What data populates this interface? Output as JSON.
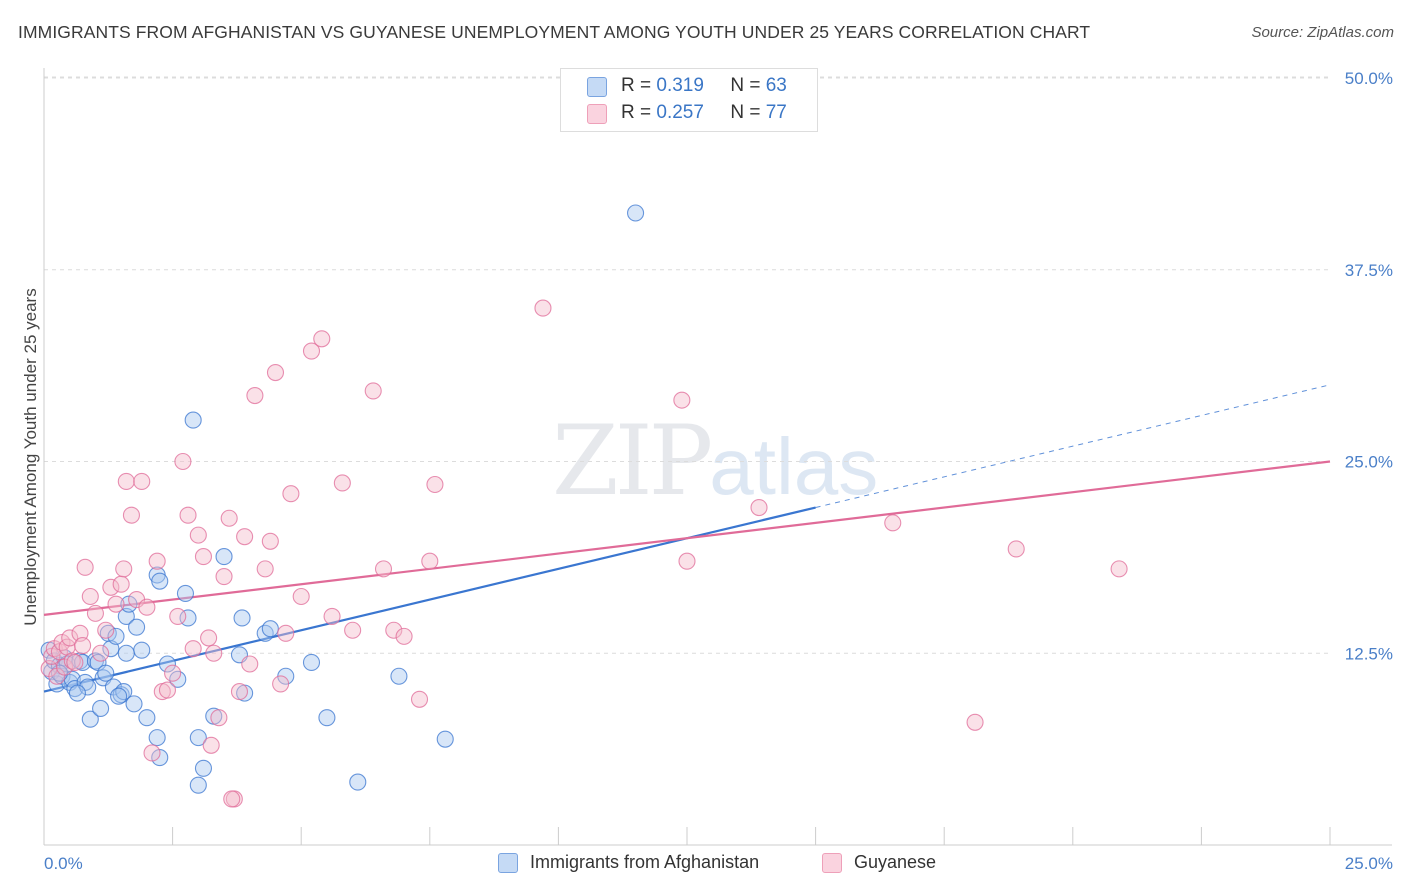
{
  "header": {
    "title": "IMMIGRANTS FROM AFGHANISTAN VS GUYANESE UNEMPLOYMENT AMONG YOUTH UNDER 25 YEARS CORRELATION CHART",
    "source": "Source: ZipAtlas.com"
  },
  "watermark": {
    "zip": "ZIP",
    "atlas": "atlas"
  },
  "legend": {
    "rows": [
      {
        "r_label": "R =",
        "r_value": "0.319",
        "n_label": "N =",
        "n_value": "63",
        "color": "#a9c8f0"
      },
      {
        "r_label": "R =",
        "r_value": "0.257",
        "n_label": "N =",
        "n_value": "77",
        "color": "#f5bccd"
      }
    ]
  },
  "bottom_legend": {
    "series1": "Immigrants from Afghanistan",
    "series2": "Guyanese"
  },
  "chart_data": {
    "type": "scatter",
    "title": "IMMIGRANTS FROM AFGHANISTAN VS GUYANESE UNEMPLOYMENT AMONG YOUTH UNDER 25 YEARS CORRELATION CHART",
    "ylabel": "Unemployment Among Youth under 25 years",
    "xlabel": "",
    "xlim": [
      0,
      25
    ],
    "ylim": [
      0,
      50
    ],
    "x_tick_labels": [
      "0.0%",
      "25.0%"
    ],
    "y_ticks": [
      12.5,
      25.0,
      37.5,
      50.0
    ],
    "y_tick_labels": [
      "12.5%",
      "25.0%",
      "37.5%",
      "50.0%"
    ],
    "grid": true,
    "legend_position": "top-center",
    "series": [
      {
        "name": "Immigrants from Afghanistan",
        "color": "#3a76d0",
        "fill": "#a9c8f0",
        "R": 0.319,
        "N": 63,
        "trend": {
          "x0": 0,
          "y0": 10.0,
          "x1": 15.0,
          "y1": 22.0,
          "x_dash_end": 25.0,
          "y_dash_end": 30.0
        },
        "points": [
          [
            0.1,
            12.7
          ],
          [
            0.15,
            11.3
          ],
          [
            0.2,
            12.0
          ],
          [
            0.25,
            10.5
          ],
          [
            0.3,
            11.7
          ],
          [
            0.35,
            11.0
          ],
          [
            0.4,
            12.2
          ],
          [
            0.45,
            11.8
          ],
          [
            0.5,
            10.6
          ],
          [
            0.55,
            10.8
          ],
          [
            0.6,
            10.2
          ],
          [
            0.7,
            12.0
          ],
          [
            0.75,
            11.9
          ],
          [
            0.8,
            10.6
          ],
          [
            0.85,
            10.3
          ],
          [
            0.9,
            8.2
          ],
          [
            1.0,
            12.0
          ],
          [
            1.05,
            11.9
          ],
          [
            1.1,
            8.9
          ],
          [
            1.15,
            10.9
          ],
          [
            1.2,
            11.2
          ],
          [
            1.25,
            13.8
          ],
          [
            1.3,
            12.8
          ],
          [
            1.35,
            10.3
          ],
          [
            1.4,
            13.6
          ],
          [
            1.5,
            9.8
          ],
          [
            1.55,
            10.0
          ],
          [
            1.6,
            14.9
          ],
          [
            1.65,
            15.7
          ],
          [
            1.75,
            9.2
          ],
          [
            1.8,
            14.2
          ],
          [
            1.9,
            12.7
          ],
          [
            2.0,
            8.3
          ],
          [
            2.2,
            7.0
          ],
          [
            2.4,
            11.8
          ],
          [
            2.6,
            10.8
          ],
          [
            2.8,
            14.8
          ],
          [
            2.9,
            27.7
          ],
          [
            3.0,
            7.0
          ],
          [
            3.1,
            5.0
          ],
          [
            3.3,
            8.4
          ],
          [
            3.5,
            18.8
          ],
          [
            3.8,
            12.4
          ],
          [
            3.9,
            9.9
          ],
          [
            4.3,
            13.8
          ],
          [
            4.7,
            11.0
          ],
          [
            5.2,
            11.9
          ],
          [
            5.5,
            8.3
          ],
          [
            6.1,
            4.1
          ],
          [
            6.9,
            11.0
          ],
          [
            7.8,
            6.9
          ],
          [
            11.5,
            41.2
          ],
          [
            2.25,
            5.7
          ],
          [
            3.85,
            14.8
          ],
          [
            1.45,
            9.7
          ],
          [
            3.0,
            3.9
          ],
          [
            2.75,
            16.4
          ],
          [
            4.4,
            14.1
          ],
          [
            0.65,
            9.9
          ],
          [
            2.2,
            17.6
          ],
          [
            0.3,
            11.2
          ],
          [
            2.25,
            17.2
          ],
          [
            1.6,
            12.5
          ]
        ]
      },
      {
        "name": "Guyanese",
        "color": "#e06b98",
        "fill": "#f5bccd",
        "R": 0.257,
        "N": 77,
        "trend": {
          "x0": 0,
          "y0": 15.0,
          "x1": 25.0,
          "y1": 25.0
        },
        "points": [
          [
            0.1,
            11.5
          ],
          [
            0.15,
            12.3
          ],
          [
            0.2,
            12.8
          ],
          [
            0.25,
            11.0
          ],
          [
            0.3,
            12.6
          ],
          [
            0.35,
            13.2
          ],
          [
            0.4,
            11.6
          ],
          [
            0.45,
            12.9
          ],
          [
            0.5,
            13.5
          ],
          [
            0.55,
            12.0
          ],
          [
            0.6,
            11.9
          ],
          [
            0.7,
            13.8
          ],
          [
            0.8,
            18.1
          ],
          [
            0.9,
            16.2
          ],
          [
            1.0,
            15.1
          ],
          [
            1.1,
            12.5
          ],
          [
            1.2,
            14.0
          ],
          [
            1.3,
            16.8
          ],
          [
            1.4,
            15.7
          ],
          [
            1.5,
            17.0
          ],
          [
            1.55,
            18.0
          ],
          [
            1.6,
            23.7
          ],
          [
            1.7,
            21.5
          ],
          [
            1.8,
            16.0
          ],
          [
            1.9,
            23.7
          ],
          [
            2.0,
            15.5
          ],
          [
            2.1,
            6.0
          ],
          [
            2.2,
            18.5
          ],
          [
            2.3,
            10.0
          ],
          [
            2.4,
            10.1
          ],
          [
            2.5,
            11.2
          ],
          [
            2.6,
            14.9
          ],
          [
            2.7,
            25.0
          ],
          [
            2.8,
            21.5
          ],
          [
            2.9,
            12.8
          ],
          [
            3.0,
            20.2
          ],
          [
            3.1,
            18.8
          ],
          [
            3.2,
            13.5
          ],
          [
            3.3,
            12.5
          ],
          [
            3.4,
            8.3
          ],
          [
            3.5,
            17.5
          ],
          [
            3.6,
            21.3
          ],
          [
            3.7,
            3.0
          ],
          [
            3.8,
            10.0
          ],
          [
            3.9,
            20.1
          ],
          [
            4.0,
            11.8
          ],
          [
            4.1,
            29.3
          ],
          [
            4.3,
            18.0
          ],
          [
            4.4,
            19.8
          ],
          [
            4.5,
            30.8
          ],
          [
            4.6,
            10.5
          ],
          [
            4.7,
            13.8
          ],
          [
            4.8,
            22.9
          ],
          [
            5.0,
            16.2
          ],
          [
            5.2,
            32.2
          ],
          [
            5.4,
            33.0
          ],
          [
            5.6,
            14.9
          ],
          [
            5.8,
            23.6
          ],
          [
            6.0,
            14.0
          ],
          [
            6.4,
            29.6
          ],
          [
            6.6,
            18.0
          ],
          [
            6.8,
            14.0
          ],
          [
            7.0,
            13.6
          ],
          [
            7.3,
            9.5
          ],
          [
            7.5,
            18.5
          ],
          [
            7.6,
            23.5
          ],
          [
            9.7,
            35.0
          ],
          [
            12.4,
            29.0
          ],
          [
            12.5,
            18.5
          ],
          [
            13.9,
            22.0
          ],
          [
            16.5,
            21.0
          ],
          [
            18.1,
            8.0
          ],
          [
            18.9,
            19.3
          ],
          [
            20.9,
            18.0
          ],
          [
            3.25,
            6.5
          ],
          [
            0.75,
            13.0
          ],
          [
            3.65,
            3.0
          ]
        ]
      }
    ]
  }
}
